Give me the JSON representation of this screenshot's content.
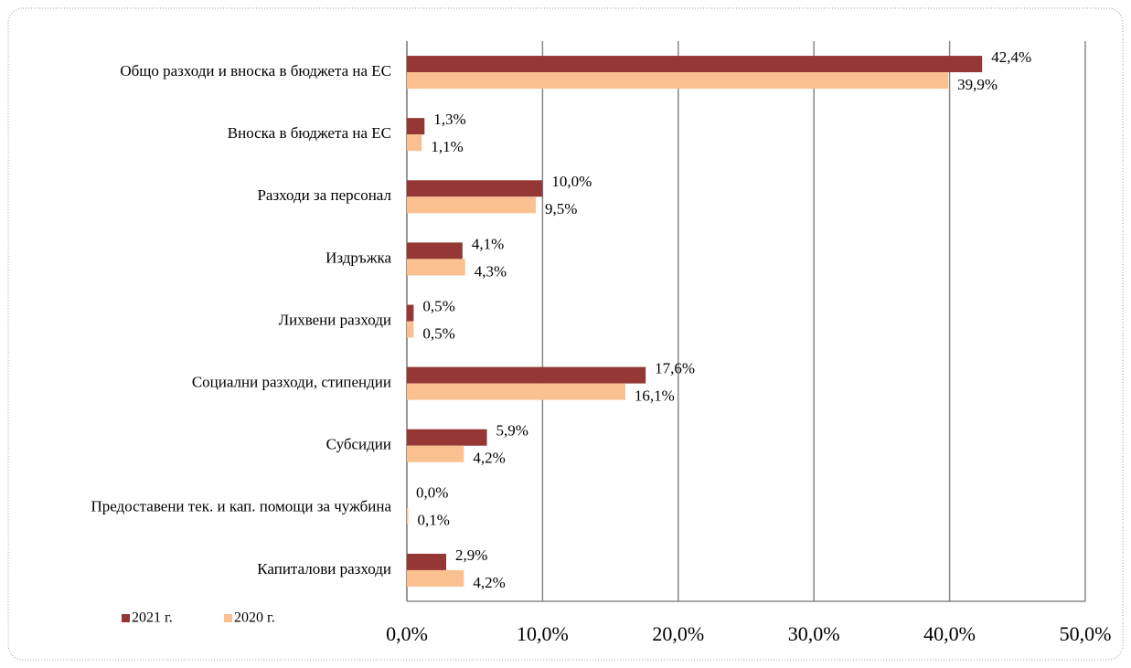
{
  "chart_data": {
    "type": "bar",
    "orientation": "horizontal",
    "categories": [
      "Общо разходи и вноска в бюджета на ЕС",
      "Вноска в бюджета на ЕС",
      "Разходи за персонал",
      "Издръжка",
      "Лихвени разходи",
      "Социални разходи, стипендии",
      "Субсидии",
      "Предоставени тек. и кап. помощи за чужбина",
      "Капиталови разходи"
    ],
    "series": [
      {
        "name": "2021 г.",
        "color": "#953735",
        "values": [
          42.4,
          1.3,
          10.0,
          4.1,
          0.5,
          17.6,
          5.9,
          0.0,
          2.9
        ],
        "value_labels": [
          "42,4%",
          "1,3%",
          "10,0%",
          "4,1%",
          "0,5%",
          "17,6%",
          "5,9%",
          "0,0%",
          "2,9%"
        ]
      },
      {
        "name": "2020 г.",
        "color": "#fac090",
        "values": [
          39.9,
          1.1,
          9.5,
          4.3,
          0.5,
          16.1,
          4.2,
          0.1,
          4.2
        ],
        "value_labels": [
          "39,9%",
          "1,1%",
          "9,5%",
          "4,3%",
          "0,5%",
          "16,1%",
          "4,2%",
          "0,1%",
          "4,2%"
        ]
      }
    ],
    "xlim": [
      0,
      50
    ],
    "xticks": [
      {
        "value": 0,
        "label": "0,0%"
      },
      {
        "value": 10,
        "label": "10,0%"
      },
      {
        "value": 20,
        "label": "20,0%"
      },
      {
        "value": 30,
        "label": "30,0%"
      },
      {
        "value": 40,
        "label": "40,0%"
      },
      {
        "value": 50,
        "label": "50,0%"
      }
    ],
    "grid": true,
    "legend": "bottom-left"
  }
}
